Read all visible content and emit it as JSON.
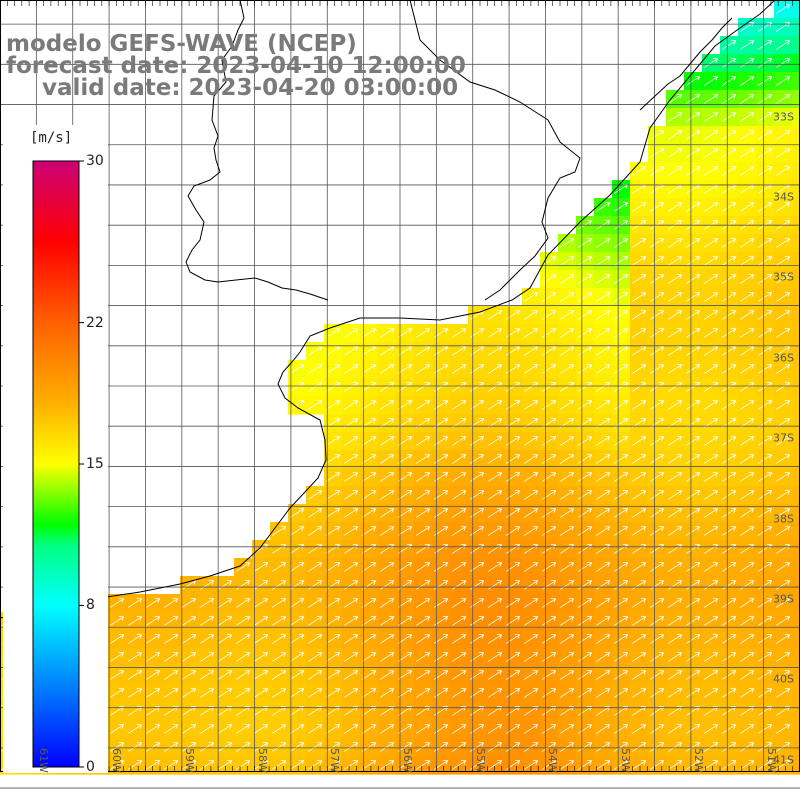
{
  "title": {
    "model": "modelo GEFS-WAVE (NCEP)",
    "forecast": "forecast date: 2023-04-10 12:00:00",
    "valid": "valid date: 2023-04-20 03:00:00"
  },
  "colorbar": {
    "unit": "[m/s]",
    "ticks": [
      "30",
      "22",
      "15",
      "8",
      "0"
    ],
    "tick_values": [
      30,
      22,
      15,
      8,
      0
    ],
    "min": 0,
    "max": 30,
    "colors": [
      "#0000ff",
      "#00ffff",
      "#00ff00",
      "#ffff00",
      "#ff8000",
      "#ff0000",
      "#cc0077"
    ]
  },
  "map": {
    "lat_labels": [
      "33S",
      "34S",
      "35S",
      "36S",
      "37S",
      "38S",
      "39S",
      "40S",
      "41S"
    ],
    "lat_values": [
      -33,
      -34,
      -35,
      -36,
      -37,
      -38,
      -39,
      -40,
      -41
    ],
    "lon_labels": [
      "61W",
      "60W",
      "59W",
      "58W",
      "57W",
      "56W",
      "55W",
      "54W",
      "53W",
      "52W",
      "51W"
    ],
    "lon_values": [
      -61,
      -60,
      -59,
      -58,
      -57,
      -56,
      -55,
      -54,
      -53,
      -52,
      -51
    ],
    "lon_range": [
      -61.5,
      -50.5
    ],
    "lat_range": [
      -41.3,
      -31.7
    ],
    "land_color": "#ffffff",
    "coast_color": "#000000",
    "grid_color": "#555555",
    "arrow_color": "#ffffff",
    "wind_direction": "toward north-east"
  }
}
